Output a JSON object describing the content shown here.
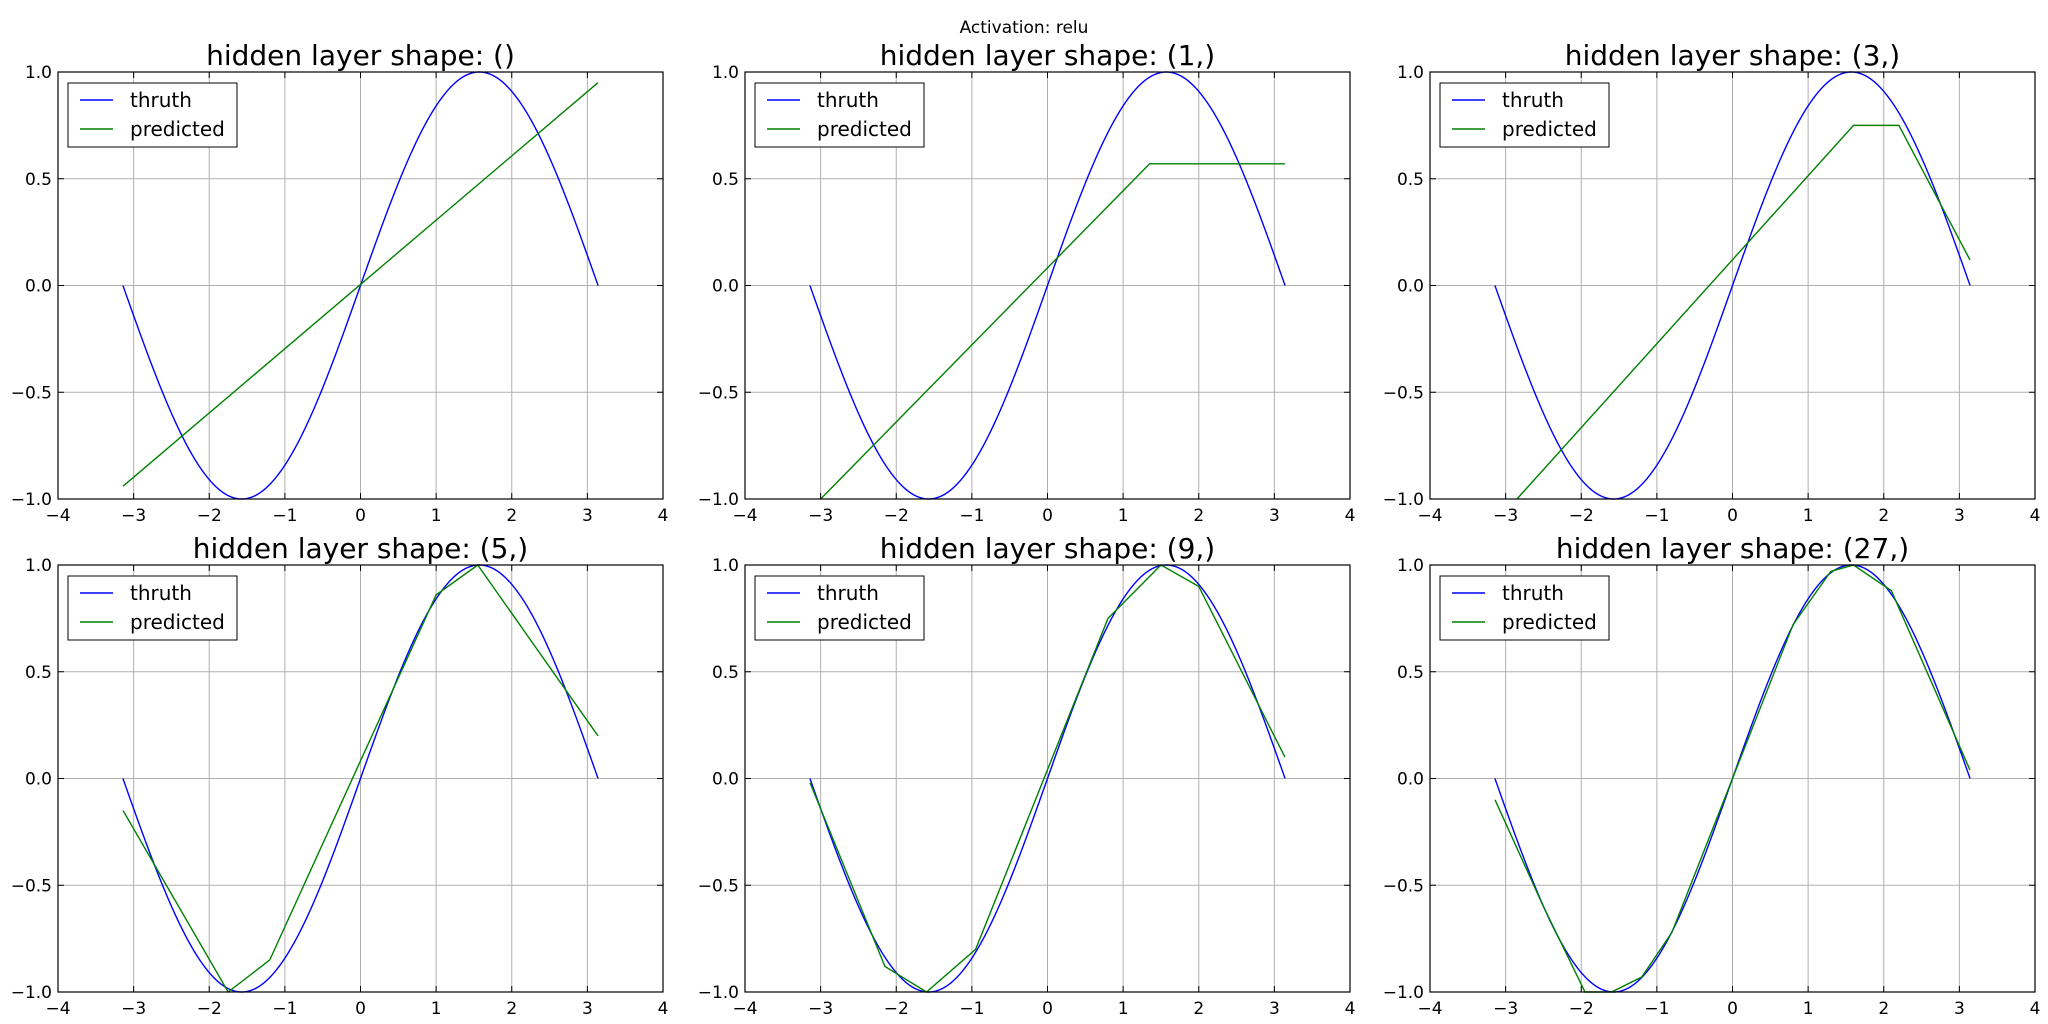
{
  "suptitle": "Activation: relu",
  "chart_data": [
    {
      "type": "line",
      "title": "hidden layer shape: ()",
      "xlim": [
        -4,
        4
      ],
      "ylim": [
        -1,
        1
      ],
      "xticks": [
        -4,
        -3,
        -2,
        -1,
        0,
        1,
        2,
        3,
        4
      ],
      "yticks": [
        -1.0,
        -0.5,
        0.0,
        0.5,
        1.0
      ],
      "xtick_labels": [
        "−4",
        "−3",
        "−2",
        "−1",
        "0",
        "1",
        "2",
        "3",
        "4"
      ],
      "ytick_labels": [
        "−1.0",
        "−0.5",
        "0.0",
        "0.5",
        "1.0"
      ],
      "grid": true,
      "legend_loc": "upper left",
      "series": [
        {
          "name": "thruth",
          "color": "#0000ff",
          "function": "sin",
          "x_range": [
            -3.1416,
            3.1416
          ]
        },
        {
          "name": "predicted",
          "color": "#008000",
          "x": [
            -3.14,
            3.14
          ],
          "y": [
            -0.94,
            0.95
          ]
        }
      ]
    },
    {
      "type": "line",
      "title": "hidden layer shape: (1,)",
      "xlim": [
        -4,
        4
      ],
      "ylim": [
        -1,
        1
      ],
      "xticks": [
        -4,
        -3,
        -2,
        -1,
        0,
        1,
        2,
        3,
        4
      ],
      "yticks": [
        -1.0,
        -0.5,
        0.0,
        0.5,
        1.0
      ],
      "xtick_labels": [
        "−4",
        "−3",
        "−2",
        "−1",
        "0",
        "1",
        "2",
        "3",
        "4"
      ],
      "ytick_labels": [
        "−1.0",
        "−0.5",
        "0.0",
        "0.5",
        "1.0"
      ],
      "grid": true,
      "legend_loc": "upper left",
      "series": [
        {
          "name": "thruth",
          "color": "#0000ff",
          "function": "sin",
          "x_range": [
            -3.1416,
            3.1416
          ]
        },
        {
          "name": "predicted",
          "color": "#008000",
          "x": [
            -3.0,
            1.35,
            3.14
          ],
          "y": [
            -1.0,
            0.57,
            0.57
          ]
        }
      ]
    },
    {
      "type": "line",
      "title": "hidden layer shape: (3,)",
      "xlim": [
        -4,
        4
      ],
      "ylim": [
        -1,
        1
      ],
      "xticks": [
        -4,
        -3,
        -2,
        -1,
        0,
        1,
        2,
        3,
        4
      ],
      "yticks": [
        -1.0,
        -0.5,
        0.0,
        0.5,
        1.0
      ],
      "xtick_labels": [
        "−4",
        "−3",
        "−2",
        "−1",
        "0",
        "1",
        "2",
        "3",
        "4"
      ],
      "ytick_labels": [
        "−1.0",
        "−0.5",
        "0.0",
        "0.5",
        "1.0"
      ],
      "grid": true,
      "legend_loc": "upper left",
      "series": [
        {
          "name": "thruth",
          "color": "#0000ff",
          "function": "sin",
          "x_range": [
            -3.1416,
            3.1416
          ]
        },
        {
          "name": "predicted",
          "color": "#008000",
          "x": [
            -2.85,
            1.6,
            2.2,
            3.14
          ],
          "y": [
            -1.0,
            0.75,
            0.75,
            0.12
          ]
        }
      ]
    },
    {
      "type": "line",
      "title": "hidden layer shape: (5,)",
      "xlim": [
        -4,
        4
      ],
      "ylim": [
        -1,
        1
      ],
      "xticks": [
        -4,
        -3,
        -2,
        -1,
        0,
        1,
        2,
        3,
        4
      ],
      "yticks": [
        -1.0,
        -0.5,
        0.0,
        0.5,
        1.0
      ],
      "xtick_labels": [
        "−4",
        "−3",
        "−2",
        "−1",
        "0",
        "1",
        "2",
        "3",
        "4"
      ],
      "ytick_labels": [
        "−1.0",
        "−0.5",
        "0.0",
        "0.5",
        "1.0"
      ],
      "grid": true,
      "legend_loc": "upper left",
      "series": [
        {
          "name": "thruth",
          "color": "#0000ff",
          "function": "sin",
          "x_range": [
            -3.1416,
            3.1416
          ]
        },
        {
          "name": "predicted",
          "color": "#008000",
          "x": [
            -3.14,
            -1.75,
            -1.2,
            1.0,
            1.55,
            3.14
          ],
          "y": [
            -0.15,
            -1.0,
            -0.85,
            0.86,
            1.0,
            0.2
          ]
        }
      ]
    },
    {
      "type": "line",
      "title": "hidden layer shape: (9,)",
      "xlim": [
        -4,
        4
      ],
      "ylim": [
        -1,
        1
      ],
      "xticks": [
        -4,
        -3,
        -2,
        -1,
        0,
        1,
        2,
        3,
        4
      ],
      "yticks": [
        -1.0,
        -0.5,
        0.0,
        0.5,
        1.0
      ],
      "xtick_labels": [
        "−4",
        "−3",
        "−2",
        "−1",
        "0",
        "1",
        "2",
        "3",
        "4"
      ],
      "ytick_labels": [
        "−1.0",
        "−0.5",
        "0.0",
        "0.5",
        "1.0"
      ],
      "grid": true,
      "legend_loc": "upper left",
      "series": [
        {
          "name": "thruth",
          "color": "#0000ff",
          "function": "sin",
          "x_range": [
            -3.1416,
            3.1416
          ]
        },
        {
          "name": "predicted",
          "color": "#008000",
          "x": [
            -3.14,
            -2.15,
            -1.6,
            -0.95,
            0.8,
            1.5,
            2.0,
            3.14
          ],
          "y": [
            -0.02,
            -0.88,
            -1.0,
            -0.8,
            0.75,
            1.0,
            0.9,
            0.1
          ]
        }
      ]
    },
    {
      "type": "line",
      "title": "hidden layer shape: (27,)",
      "xlim": [
        -4,
        4
      ],
      "ylim": [
        -1,
        1
      ],
      "xticks": [
        -4,
        -3,
        -2,
        -1,
        0,
        1,
        2,
        3,
        4
      ],
      "yticks": [
        -1.0,
        -0.5,
        0.0,
        0.5,
        1.0
      ],
      "xtick_labels": [
        "−4",
        "−3",
        "−2",
        "−1",
        "0",
        "1",
        "2",
        "3",
        "4"
      ],
      "ytick_labels": [
        "−1.0",
        "−0.5",
        "0.0",
        "0.5",
        "1.0"
      ],
      "grid": true,
      "legend_loc": "upper left",
      "series": [
        {
          "name": "thruth",
          "color": "#0000ff",
          "function": "sin",
          "x_range": [
            -3.1416,
            3.1416
          ]
        },
        {
          "name": "predicted",
          "color": "#008000",
          "x": [
            -3.14,
            -2.5,
            -1.95,
            -1.6,
            -1.2,
            -0.8,
            0.0,
            0.8,
            1.3,
            1.6,
            2.1,
            3.14
          ],
          "y": [
            -0.1,
            -0.6,
            -1.0,
            -1.0,
            -0.93,
            -0.72,
            0.0,
            0.72,
            0.97,
            1.0,
            0.88,
            0.04
          ]
        }
      ]
    }
  ]
}
